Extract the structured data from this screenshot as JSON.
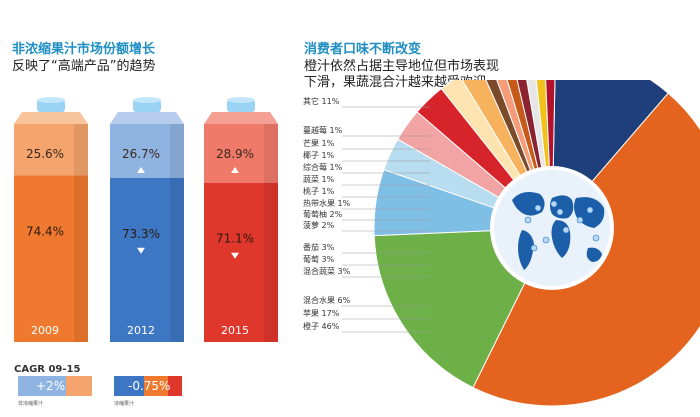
{
  "left": {
    "title": "非浓缩果汁市场份额增长",
    "subtitle": "反映了“高端产品”的趋势"
  },
  "right": {
    "title": "消费者口味不断改变",
    "subtitle_line1": "橙汁依然占据主导地位但市场表现",
    "subtitle_line2": "下滑，果蔬混合汁越来越受欢迎"
  },
  "cagr": {
    "label": "CAGR 09-15",
    "nfc_value": "+2%",
    "fc_value": "-0.75%",
    "nfc_label": "非浓缩果汁",
    "fc_label": "浓缩果汁"
  },
  "colors": {
    "nfc_2009": "#f4a46c",
    "fc_2009": "#ef7a2f",
    "nfc_2012": "#8fb4e2",
    "fc_2012": "#3d77c4",
    "nfc_2015": "#f07a6a",
    "fc_2015": "#e0372c",
    "accent_title": "#1f8ec2"
  },
  "chart_data": [
    {
      "type": "bar",
      "categories": [
        "2009",
        "2012",
        "2015"
      ],
      "series": [
        {
          "name": "非浓缩果汁",
          "values": [
            25.6,
            26.7,
            28.9
          ]
        },
        {
          "name": "浓缩果汁",
          "values": [
            74.4,
            73.3,
            71.1
          ]
        }
      ],
      "labels_top": [
        "25.6%",
        "26.7%",
        "28.9%"
      ],
      "labels_bottom": [
        "74.4%",
        "73.3%",
        "71.1%"
      ],
      "ylim": [
        0,
        100
      ]
    },
    {
      "type": "pie",
      "slices": [
        {
          "label": "其它 11%",
          "value": 11,
          "color": "#1f3f7a"
        },
        {
          "label": "橙子 46%",
          "value": 46,
          "color": "#e4641f"
        },
        {
          "label": "苹果 17%",
          "value": 17,
          "color": "#6db048"
        },
        {
          "label": "混合水果 6%",
          "value": 6,
          "color": "#7fbfe6"
        },
        {
          "label": "混合蔬菜 3%",
          "value": 3,
          "color": "#b8dcf0"
        },
        {
          "label": "葡萄 3%",
          "value": 3,
          "color": "#f2a3a3"
        },
        {
          "label": "番茄 3%",
          "value": 3,
          "color": "#d7242b"
        },
        {
          "label": "菠萝 2%",
          "value": 2,
          "color": "#fce3b0"
        },
        {
          "label": "葡萄柚 2%",
          "value": 2,
          "color": "#f6b25d"
        },
        {
          "label": "热带水果 1%",
          "value": 1,
          "color": "#7a4a2a"
        },
        {
          "label": "桃子 1%",
          "value": 1,
          "color": "#f59d7a"
        },
        {
          "label": "蔬菜 1%",
          "value": 1,
          "color": "#c75a1b"
        },
        {
          "label": "综合莓 1%",
          "value": 1,
          "color": "#8b2232"
        },
        {
          "label": "椰子 1%",
          "value": 1,
          "color": "#e6e6e6"
        },
        {
          "label": "芒果 1%",
          "value": 1,
          "color": "#f1c21b"
        },
        {
          "label": "蔓越莓 1%",
          "value": 1,
          "color": "#b2122b"
        }
      ]
    }
  ]
}
